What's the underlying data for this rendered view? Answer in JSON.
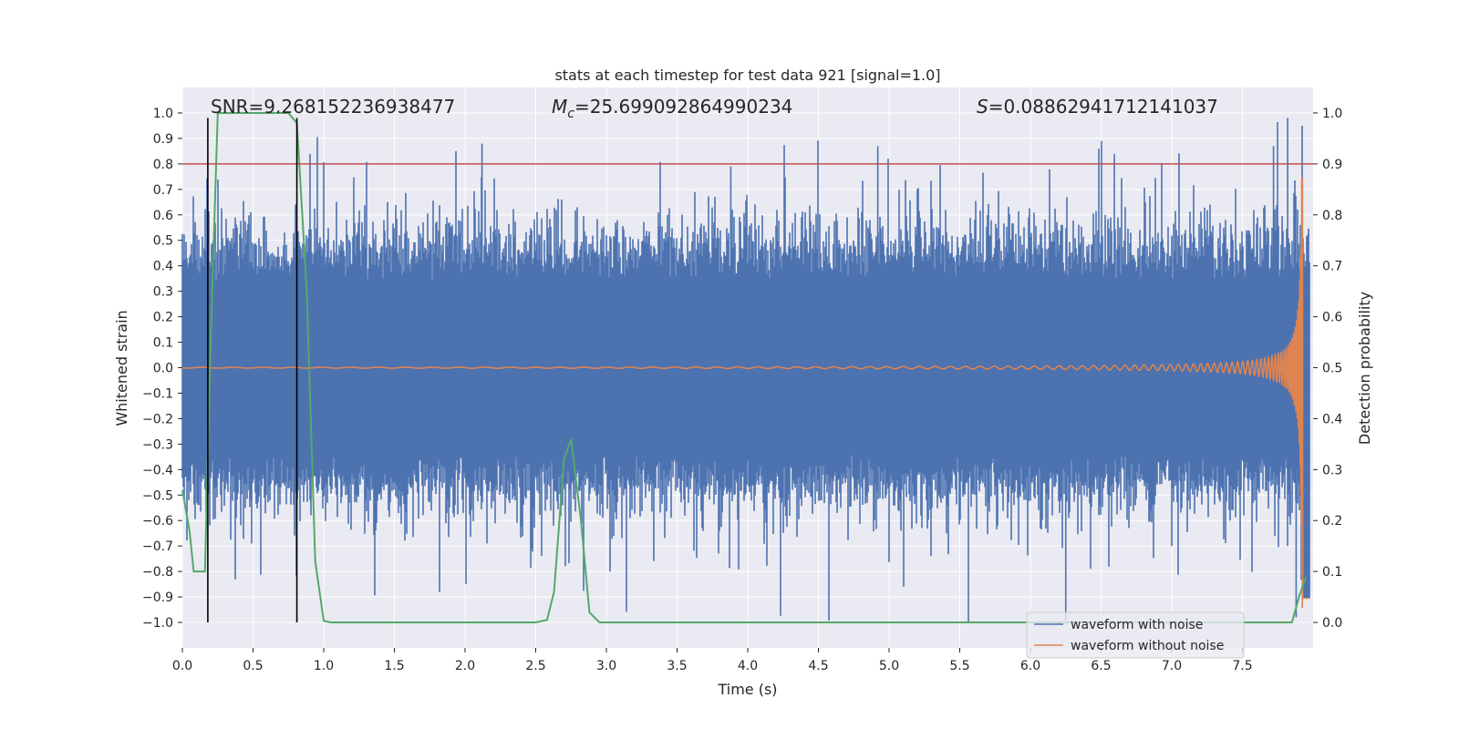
{
  "chart_data": {
    "type": "line",
    "title": "stats at each timestep for test data 921 [signal=1.0]",
    "xlabel": "Time (s)",
    "ylabel_left": "Whitened strain",
    "ylabel_right": "Detection probability",
    "xlim": [
      0.0,
      8.0
    ],
    "ylim_left": [
      -1.1,
      1.1
    ],
    "ylim_right": [
      -0.05,
      1.05
    ],
    "x_ticks": [
      "0.0",
      "0.5",
      "1.0",
      "1.5",
      "2.0",
      "2.5",
      "3.0",
      "3.5",
      "4.0",
      "4.5",
      "5.0",
      "5.5",
      "6.0",
      "6.5",
      "7.0",
      "7.5"
    ],
    "y_left_ticks": [
      "−1.0",
      "−0.9",
      "−0.8",
      "−0.7",
      "−0.6",
      "−0.5",
      "−0.4",
      "−0.3",
      "−0.2",
      "−0.1",
      "0.0",
      "0.1",
      "0.2",
      "0.3",
      "0.4",
      "0.5",
      "0.6",
      "0.7",
      "0.8",
      "0.9",
      "1.0"
    ],
    "y_right_ticks": [
      "0.0",
      "0.1",
      "0.2",
      "0.3",
      "0.4",
      "0.5",
      "0.6",
      "0.7",
      "0.8",
      "0.9",
      "1.0"
    ],
    "annotations": {
      "snr": "SNR=9.268152236938477",
      "mc_symbol": "M",
      "mc_sub": "c",
      "mc_value": "=25.699092864990234",
      "s_symbol": "S",
      "s_value": "=0.08862941712141037"
    },
    "threshold_right": 0.9,
    "vertical_markers_s": [
      0.18,
      0.81
    ],
    "detection_probability": {
      "x": [
        0.0,
        0.05,
        0.08,
        0.12,
        0.16,
        0.2,
        0.25,
        0.3,
        0.75,
        0.81,
        0.88,
        0.94,
        1.0,
        1.05,
        1.1,
        2.4,
        2.5,
        2.58,
        2.63,
        2.7,
        2.75,
        2.82,
        2.88,
        2.95,
        3.0,
        7.85,
        7.9,
        7.95
      ],
      "values": [
        0.26,
        0.18,
        0.1,
        0.1,
        0.1,
        0.55,
        1.0,
        1.0,
        1.0,
        0.98,
        0.65,
        0.12,
        0.003,
        0.0,
        0.0,
        0.0,
        0.0,
        0.005,
        0.06,
        0.32,
        0.36,
        0.2,
        0.02,
        0.0,
        0.0,
        0.0,
        0.05,
        0.09
      ]
    },
    "legend": {
      "position": "lower-right",
      "entries": [
        {
          "label": "waveform with noise",
          "color": "#4c72b0"
        },
        {
          "label": "waveform without noise",
          "color": "#dd8452"
        }
      ]
    },
    "colors": {
      "noise": "#4c72b0",
      "clean": "#dd8452",
      "prob": "#55a868",
      "threshold": "#c44e52",
      "marker": "#000000",
      "background": "#eaeaf2",
      "grid": "#ffffff"
    },
    "series_notes": {
      "noise_envelope_typical": 0.4,
      "noise_peak_max": 0.98,
      "chirp_end_time": 7.93,
      "chirp_peak_amplitude": 0.95
    }
  }
}
